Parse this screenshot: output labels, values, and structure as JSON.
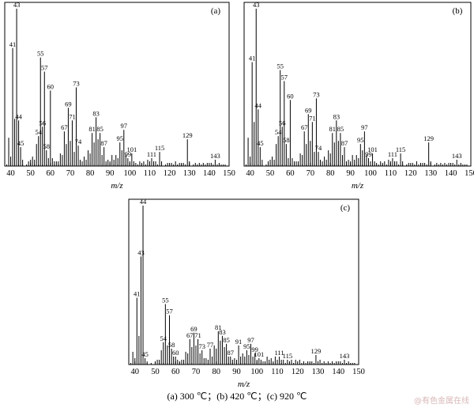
{
  "caption": "(a) 300 ℃；(b) 420 ℃；(c) 920 ℃",
  "watermark": "@有色金属在线",
  "chart_data": [
    {
      "type": "bar",
      "panel": "(a)",
      "xlabel": "m/z",
      "xlim": [
        37,
        150
      ],
      "xticks": [
        40,
        50,
        60,
        70,
        80,
        90,
        100,
        110,
        120,
        130,
        140,
        150
      ],
      "ylim": [
        0,
        100
      ],
      "peaks": [
        {
          "mz": 39,
          "y": 18
        },
        {
          "mz": 40,
          "y": 6
        },
        {
          "mz": 41,
          "y": 75,
          "label": "41"
        },
        {
          "mz": 42,
          "y": 30
        },
        {
          "mz": 43,
          "y": 100,
          "label": "43"
        },
        {
          "mz": 44,
          "y": 29,
          "label": "44"
        },
        {
          "mz": 45,
          "y": 12,
          "label": "45"
        },
        {
          "mz": 46,
          "y": 4
        },
        {
          "mz": 49,
          "y": 3
        },
        {
          "mz": 50,
          "y": 4
        },
        {
          "mz": 51,
          "y": 6
        },
        {
          "mz": 52,
          "y": 4
        },
        {
          "mz": 53,
          "y": 14
        },
        {
          "mz": 54,
          "y": 19,
          "label": "54"
        },
        {
          "mz": 55,
          "y": 69,
          "label": "55"
        },
        {
          "mz": 56,
          "y": 25,
          "label": "56"
        },
        {
          "mz": 57,
          "y": 60,
          "label": "57"
        },
        {
          "mz": 58,
          "y": 10,
          "label": "58"
        },
        {
          "mz": 59,
          "y": 5
        },
        {
          "mz": 60,
          "y": 48,
          "label": "60"
        },
        {
          "mz": 61,
          "y": 5
        },
        {
          "mz": 62,
          "y": 3
        },
        {
          "mz": 63,
          "y": 3
        },
        {
          "mz": 64,
          "y": 3
        },
        {
          "mz": 65,
          "y": 8
        },
        {
          "mz": 66,
          "y": 7
        },
        {
          "mz": 67,
          "y": 22,
          "label": "67"
        },
        {
          "mz": 68,
          "y": 14
        },
        {
          "mz": 69,
          "y": 37,
          "label": "69"
        },
        {
          "mz": 70,
          "y": 16
        },
        {
          "mz": 71,
          "y": 29,
          "label": "71"
        },
        {
          "mz": 72,
          "y": 9
        },
        {
          "mz": 73,
          "y": 50,
          "label": "73"
        },
        {
          "mz": 74,
          "y": 13,
          "label": "74"
        },
        {
          "mz": 75,
          "y": 4
        },
        {
          "mz": 76,
          "y": 3
        },
        {
          "mz": 77,
          "y": 6
        },
        {
          "mz": 78,
          "y": 4
        },
        {
          "mz": 79,
          "y": 10
        },
        {
          "mz": 80,
          "y": 8
        },
        {
          "mz": 81,
          "y": 21,
          "label": "81"
        },
        {
          "mz": 82,
          "y": 15
        },
        {
          "mz": 83,
          "y": 31,
          "label": "83"
        },
        {
          "mz": 84,
          "y": 17
        },
        {
          "mz": 85,
          "y": 21,
          "label": "85"
        },
        {
          "mz": 86,
          "y": 7
        },
        {
          "mz": 87,
          "y": 12,
          "label": "87"
        },
        {
          "mz": 88,
          "y": 3
        },
        {
          "mz": 89,
          "y": 4
        },
        {
          "mz": 90,
          "y": 3
        },
        {
          "mz": 91,
          "y": 7
        },
        {
          "mz": 92,
          "y": 4
        },
        {
          "mz": 93,
          "y": 7
        },
        {
          "mz": 94,
          "y": 5
        },
        {
          "mz": 95,
          "y": 15,
          "label": "95"
        },
        {
          "mz": 96,
          "y": 10
        },
        {
          "mz": 97,
          "y": 23,
          "label": "97"
        },
        {
          "mz": 98,
          "y": 7
        },
        {
          "mz": 99,
          "y": 5,
          "label": "99"
        },
        {
          "mz": 100,
          "y": 3
        },
        {
          "mz": 101,
          "y": 8,
          "label": "101"
        },
        {
          "mz": 102,
          "y": 3
        },
        {
          "mz": 103,
          "y": 2
        },
        {
          "mz": 105,
          "y": 3
        },
        {
          "mz": 106,
          "y": 2
        },
        {
          "mz": 107,
          "y": 3
        },
        {
          "mz": 109,
          "y": 4
        },
        {
          "mz": 110,
          "y": 3
        },
        {
          "mz": 111,
          "y": 5,
          "label": "111"
        },
        {
          "mz": 112,
          "y": 3
        },
        {
          "mz": 113,
          "y": 3
        },
        {
          "mz": 115,
          "y": 9,
          "label": "115"
        },
        {
          "mz": 116,
          "y": 3
        },
        {
          "mz": 119,
          "y": 2
        },
        {
          "mz": 121,
          "y": 2
        },
        {
          "mz": 123,
          "y": 3
        },
        {
          "mz": 125,
          "y": 2
        },
        {
          "mz": 126,
          "y": 2
        },
        {
          "mz": 127,
          "y": 2
        },
        {
          "mz": 129,
          "y": 17,
          "label": "129"
        },
        {
          "mz": 130,
          "y": 3
        },
        {
          "mz": 133,
          "y": 2
        },
        {
          "mz": 135,
          "y": 2
        },
        {
          "mz": 137,
          "y": 2
        },
        {
          "mz": 139,
          "y": 2
        },
        {
          "mz": 141,
          "y": 2
        },
        {
          "mz": 143,
          "y": 4,
          "label": "143"
        },
        {
          "mz": 145,
          "y": 2
        },
        {
          "mz": 147,
          "y": 1
        }
      ]
    },
    {
      "type": "bar",
      "panel": "(b)",
      "xlabel": "m/z",
      "xlim": [
        37,
        150
      ],
      "xticks": [
        40,
        50,
        60,
        70,
        80,
        90,
        100,
        110,
        120,
        130,
        140,
        150
      ],
      "ylim": [
        0,
        100
      ],
      "peaks": [
        {
          "mz": 39,
          "y": 18
        },
        {
          "mz": 40,
          "y": 6
        },
        {
          "mz": 41,
          "y": 66,
          "label": "41"
        },
        {
          "mz": 42,
          "y": 28
        },
        {
          "mz": 43,
          "y": 100,
          "label": "43"
        },
        {
          "mz": 44,
          "y": 36,
          "label": "44"
        },
        {
          "mz": 45,
          "y": 12,
          "label": "45"
        },
        {
          "mz": 46,
          "y": 4
        },
        {
          "mz": 49,
          "y": 3
        },
        {
          "mz": 50,
          "y": 4
        },
        {
          "mz": 51,
          "y": 6
        },
        {
          "mz": 52,
          "y": 4
        },
        {
          "mz": 53,
          "y": 14
        },
        {
          "mz": 54,
          "y": 19,
          "label": "54"
        },
        {
          "mz": 55,
          "y": 61,
          "label": "55"
        },
        {
          "mz": 56,
          "y": 25,
          "label": "56"
        },
        {
          "mz": 57,
          "y": 54,
          "label": "57"
        },
        {
          "mz": 58,
          "y": 14,
          "label": "58"
        },
        {
          "mz": 59,
          "y": 5
        },
        {
          "mz": 60,
          "y": 42,
          "label": "60"
        },
        {
          "mz": 61,
          "y": 5
        },
        {
          "mz": 62,
          "y": 3
        },
        {
          "mz": 63,
          "y": 3
        },
        {
          "mz": 64,
          "y": 3
        },
        {
          "mz": 65,
          "y": 8
        },
        {
          "mz": 66,
          "y": 7
        },
        {
          "mz": 67,
          "y": 22,
          "label": "67"
        },
        {
          "mz": 68,
          "y": 14
        },
        {
          "mz": 69,
          "y": 33,
          "label": "69"
        },
        {
          "mz": 70,
          "y": 16
        },
        {
          "mz": 71,
          "y": 28,
          "label": "71"
        },
        {
          "mz": 72,
          "y": 9
        },
        {
          "mz": 73,
          "y": 43,
          "label": "73"
        },
        {
          "mz": 74,
          "y": 9,
          "label": "74"
        },
        {
          "mz": 75,
          "y": 4
        },
        {
          "mz": 76,
          "y": 3
        },
        {
          "mz": 77,
          "y": 6
        },
        {
          "mz": 78,
          "y": 4
        },
        {
          "mz": 79,
          "y": 10
        },
        {
          "mz": 80,
          "y": 8
        },
        {
          "mz": 81,
          "y": 21,
          "label": "81"
        },
        {
          "mz": 82,
          "y": 15
        },
        {
          "mz": 83,
          "y": 29,
          "label": "83"
        },
        {
          "mz": 84,
          "y": 16
        },
        {
          "mz": 85,
          "y": 21,
          "label": "85"
        },
        {
          "mz": 86,
          "y": 7
        },
        {
          "mz": 87,
          "y": 12,
          "label": "87"
        },
        {
          "mz": 88,
          "y": 3
        },
        {
          "mz": 89,
          "y": 4
        },
        {
          "mz": 90,
          "y": 3
        },
        {
          "mz": 91,
          "y": 7
        },
        {
          "mz": 92,
          "y": 4
        },
        {
          "mz": 93,
          "y": 7
        },
        {
          "mz": 94,
          "y": 5
        },
        {
          "mz": 95,
          "y": 14,
          "label": "95"
        },
        {
          "mz": 96,
          "y": 10
        },
        {
          "mz": 97,
          "y": 22,
          "label": "97"
        },
        {
          "mz": 98,
          "y": 7
        },
        {
          "mz": 99,
          "y": 5,
          "label": "99"
        },
        {
          "mz": 100,
          "y": 3
        },
        {
          "mz": 101,
          "y": 8,
          "label": "101"
        },
        {
          "mz": 102,
          "y": 3
        },
        {
          "mz": 103,
          "y": 2
        },
        {
          "mz": 105,
          "y": 3
        },
        {
          "mz": 106,
          "y": 2
        },
        {
          "mz": 107,
          "y": 3
        },
        {
          "mz": 109,
          "y": 4
        },
        {
          "mz": 110,
          "y": 3
        },
        {
          "mz": 111,
          "y": 5,
          "label": "111"
        },
        {
          "mz": 112,
          "y": 3
        },
        {
          "mz": 113,
          "y": 3
        },
        {
          "mz": 115,
          "y": 8,
          "label": "115"
        },
        {
          "mz": 116,
          "y": 3
        },
        {
          "mz": 119,
          "y": 2
        },
        {
          "mz": 121,
          "y": 2
        },
        {
          "mz": 123,
          "y": 3
        },
        {
          "mz": 125,
          "y": 2
        },
        {
          "mz": 126,
          "y": 2
        },
        {
          "mz": 127,
          "y": 2
        },
        {
          "mz": 129,
          "y": 15,
          "label": "129"
        },
        {
          "mz": 130,
          "y": 3
        },
        {
          "mz": 133,
          "y": 2
        },
        {
          "mz": 135,
          "y": 2
        },
        {
          "mz": 137,
          "y": 2
        },
        {
          "mz": 139,
          "y": 2
        },
        {
          "mz": 141,
          "y": 2
        },
        {
          "mz": 143,
          "y": 4,
          "label": "143"
        },
        {
          "mz": 145,
          "y": 2
        },
        {
          "mz": 147,
          "y": 1
        }
      ]
    },
    {
      "type": "bar",
      "panel": "(c)",
      "xlabel": "m/z",
      "xlim": [
        37,
        150
      ],
      "xticks": [
        40,
        50,
        60,
        70,
        80,
        90,
        100,
        110,
        120,
        130,
        140,
        150
      ],
      "ylim": [
        0,
        100
      ],
      "peaks": [
        {
          "mz": 39,
          "y": 8
        },
        {
          "mz": 40,
          "y": 4
        },
        {
          "mz": 41,
          "y": 42,
          "label": "41"
        },
        {
          "mz": 42,
          "y": 18
        },
        {
          "mz": 43,
          "y": 68,
          "label": "43"
        },
        {
          "mz": 44,
          "y": 100,
          "label": "44"
        },
        {
          "mz": 45,
          "y": 4,
          "label": "45"
        },
        {
          "mz": 46,
          "y": 2
        },
        {
          "mz": 50,
          "y": 2
        },
        {
          "mz": 51,
          "y": 3
        },
        {
          "mz": 52,
          "y": 3
        },
        {
          "mz": 53,
          "y": 9
        },
        {
          "mz": 54,
          "y": 14,
          "label": "54"
        },
        {
          "mz": 55,
          "y": 38,
          "label": "55"
        },
        {
          "mz": 56,
          "y": 12
        },
        {
          "mz": 57,
          "y": 31,
          "label": "57"
        },
        {
          "mz": 58,
          "y": 10,
          "label": "58"
        },
        {
          "mz": 59,
          "y": 5
        },
        {
          "mz": 60,
          "y": 5,
          "label": "60"
        },
        {
          "mz": 61,
          "y": 3
        },
        {
          "mz": 62,
          "y": 2
        },
        {
          "mz": 63,
          "y": 3
        },
        {
          "mz": 64,
          "y": 3
        },
        {
          "mz": 65,
          "y": 8
        },
        {
          "mz": 66,
          "y": 7
        },
        {
          "mz": 67,
          "y": 16,
          "label": "67"
        },
        {
          "mz": 68,
          "y": 11
        },
        {
          "mz": 69,
          "y": 20,
          "label": "69"
        },
        {
          "mz": 70,
          "y": 12
        },
        {
          "mz": 71,
          "y": 16,
          "label": "71"
        },
        {
          "mz": 72,
          "y": 7
        },
        {
          "mz": 73,
          "y": 9,
          "label": "73"
        },
        {
          "mz": 74,
          "y": 4
        },
        {
          "mz": 75,
          "y": 4
        },
        {
          "mz": 76,
          "y": 3
        },
        {
          "mz": 77,
          "y": 10,
          "label": "77"
        },
        {
          "mz": 78,
          "y": 5
        },
        {
          "mz": 79,
          "y": 12
        },
        {
          "mz": 80,
          "y": 10
        },
        {
          "mz": 81,
          "y": 21,
          "label": "81"
        },
        {
          "mz": 82,
          "y": 15
        },
        {
          "mz": 83,
          "y": 18,
          "label": "83"
        },
        {
          "mz": 84,
          "y": 11
        },
        {
          "mz": 85,
          "y": 13,
          "label": "85"
        },
        {
          "mz": 86,
          "y": 5
        },
        {
          "mz": 87,
          "y": 5,
          "label": "87"
        },
        {
          "mz": 88,
          "y": 3
        },
        {
          "mz": 89,
          "y": 4
        },
        {
          "mz": 90,
          "y": 3
        },
        {
          "mz": 91,
          "y": 12,
          "label": "91"
        },
        {
          "mz": 92,
          "y": 5
        },
        {
          "mz": 93,
          "y": 7
        },
        {
          "mz": 94,
          "y": 5
        },
        {
          "mz": 95,
          "y": 9,
          "label": "95"
        },
        {
          "mz": 96,
          "y": 6
        },
        {
          "mz": 97,
          "y": 13,
          "label": "97"
        },
        {
          "mz": 98,
          "y": 5
        },
        {
          "mz": 99,
          "y": 7,
          "label": "99"
        },
        {
          "mz": 100,
          "y": 3
        },
        {
          "mz": 101,
          "y": 4,
          "label": "101"
        },
        {
          "mz": 102,
          "y": 3
        },
        {
          "mz": 103,
          "y": 2
        },
        {
          "mz": 104,
          "y": 2
        },
        {
          "mz": 105,
          "y": 5
        },
        {
          "mz": 106,
          "y": 3
        },
        {
          "mz": 107,
          "y": 4
        },
        {
          "mz": 108,
          "y": 2
        },
        {
          "mz": 109,
          "y": 5
        },
        {
          "mz": 110,
          "y": 3
        },
        {
          "mz": 111,
          "y": 5,
          "label": "111"
        },
        {
          "mz": 112,
          "y": 3
        },
        {
          "mz": 113,
          "y": 3
        },
        {
          "mz": 115,
          "y": 3,
          "label": "115"
        },
        {
          "mz": 116,
          "y": 2
        },
        {
          "mz": 117,
          "y": 3
        },
        {
          "mz": 119,
          "y": 3
        },
        {
          "mz": 121,
          "y": 3
        },
        {
          "mz": 123,
          "y": 2
        },
        {
          "mz": 125,
          "y": 2
        },
        {
          "mz": 126,
          "y": 2
        },
        {
          "mz": 127,
          "y": 2
        },
        {
          "mz": 129,
          "y": 6,
          "label": "129"
        },
        {
          "mz": 130,
          "y": 2
        },
        {
          "mz": 131,
          "y": 3
        },
        {
          "mz": 133,
          "y": 2
        },
        {
          "mz": 135,
          "y": 2
        },
        {
          "mz": 137,
          "y": 2
        },
        {
          "mz": 139,
          "y": 2
        },
        {
          "mz": 141,
          "y": 2
        },
        {
          "mz": 143,
          "y": 3,
          "label": "143"
        },
        {
          "mz": 145,
          "y": 2
        },
        {
          "mz": 147,
          "y": 1
        }
      ]
    }
  ]
}
